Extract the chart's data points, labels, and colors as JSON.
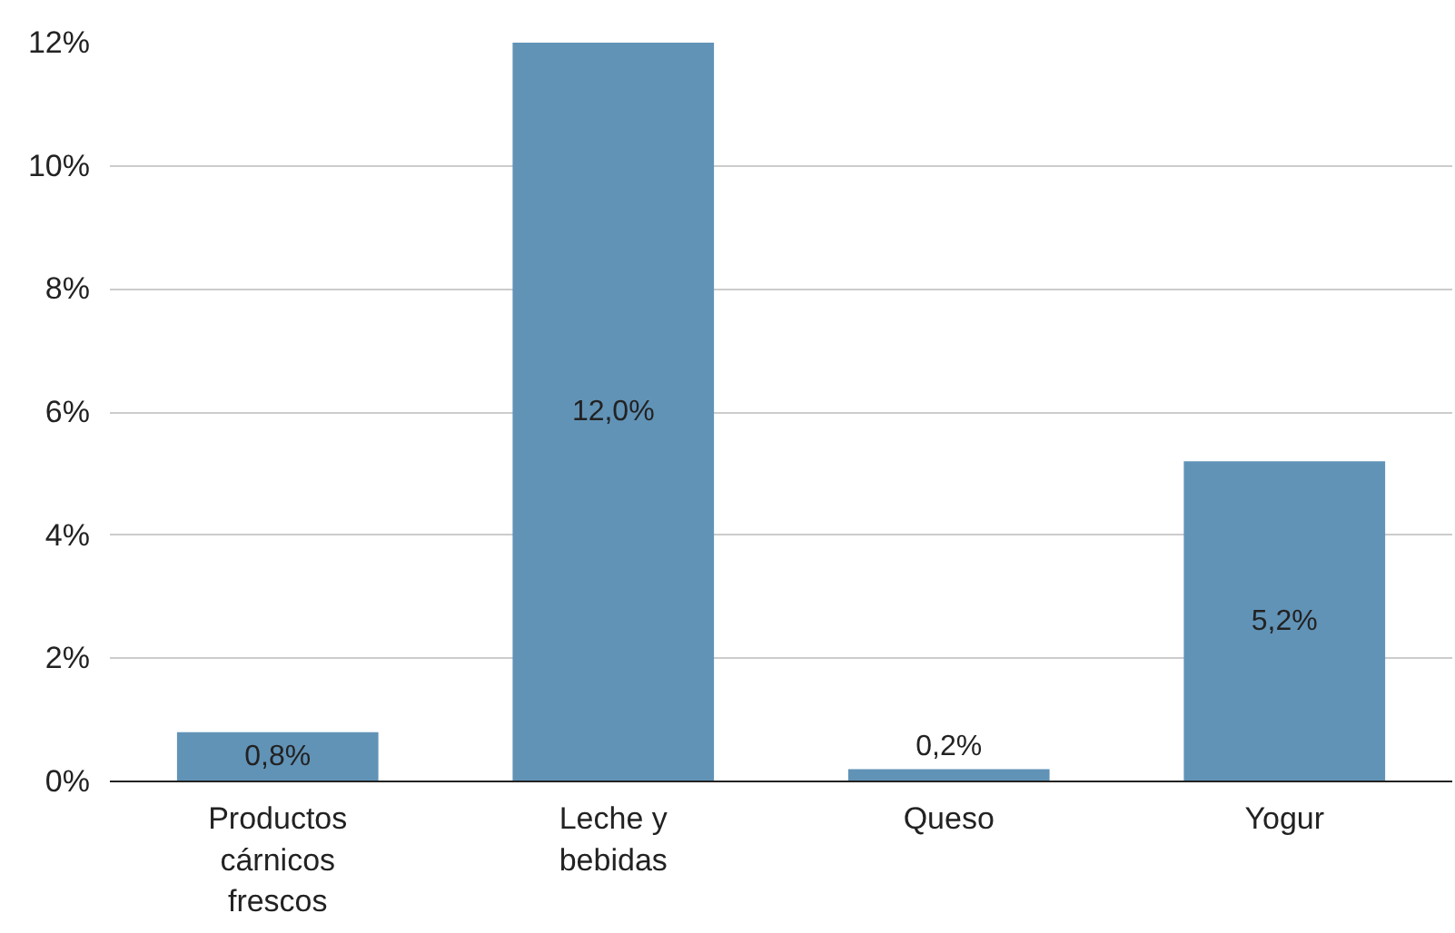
{
  "chart_data": {
    "type": "bar",
    "categories": [
      "Productos cárnicos frescos",
      "Leche y bebidas",
      "Queso",
      "Yogur"
    ],
    "values": [
      0.8,
      12.0,
      0.2,
      5.2
    ],
    "value_labels": [
      "0,8%",
      "12,0%",
      "0,2%",
      "5,2%"
    ],
    "color": "#6193b7",
    "ylim": [
      0,
      12
    ],
    "yticks": [
      {
        "value": 0,
        "label": "0%"
      },
      {
        "value": 2,
        "label": "2%"
      },
      {
        "value": 4,
        "label": "4%"
      },
      {
        "value": 6,
        "label": "6%"
      },
      {
        "value": 8,
        "label": "8%"
      },
      {
        "value": 10,
        "label": "10%"
      },
      {
        "value": 12,
        "label": "12%"
      }
    ],
    "grid": "y"
  }
}
